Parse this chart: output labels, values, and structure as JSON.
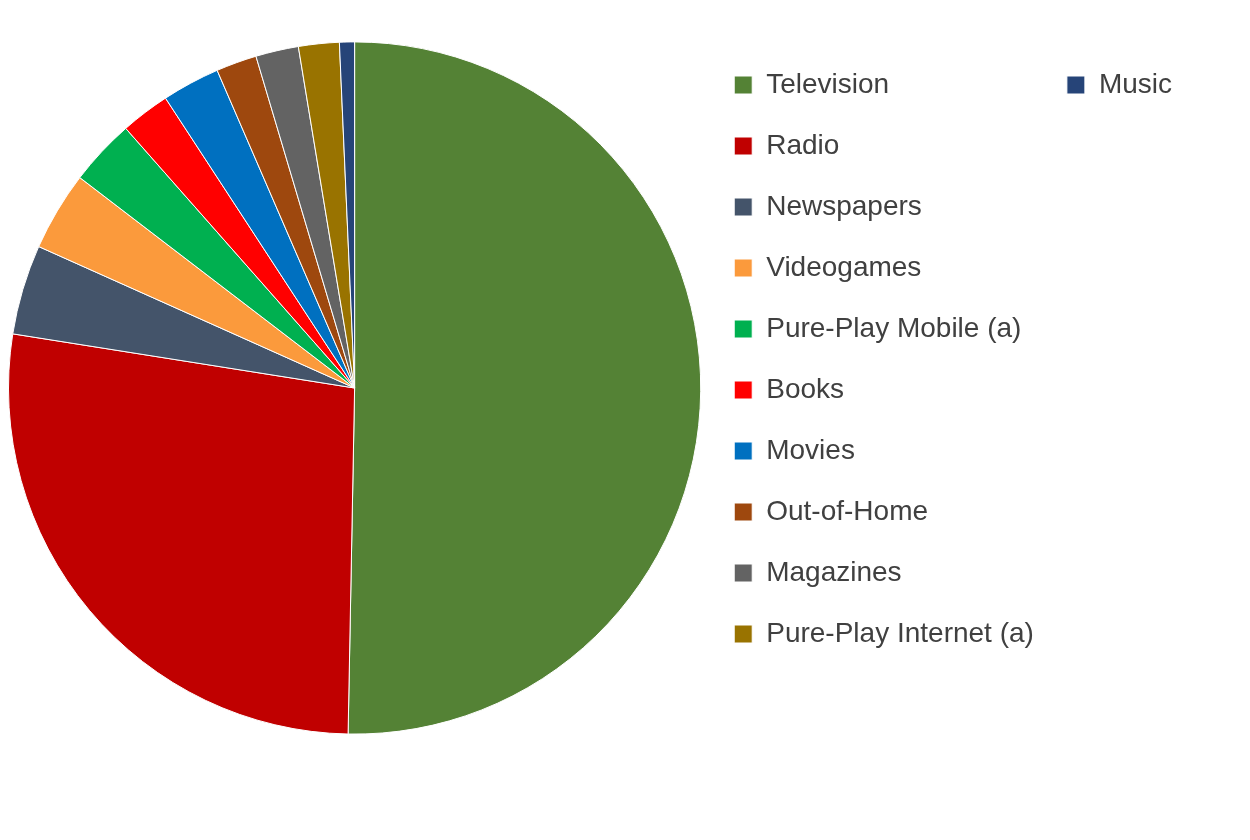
{
  "chart_data": {
    "type": "pie",
    "categories": [
      "Television",
      "Radio",
      "Newspapers",
      "Videogames",
      "Pure-Play Mobile (a)",
      "Books",
      "Movies",
      "Out-of-Home",
      "Magazines",
      "Pure-Play Internet (a)",
      "Music"
    ],
    "values": [
      50.3,
      27.2,
      4.2,
      3.7,
      3.1,
      2.3,
      2.7,
      1.9,
      2.0,
      1.9,
      0.7
    ],
    "colors": [
      "#548235",
      "#c00000",
      "#44546a",
      "#fb9a3c",
      "#00b050",
      "#ff0000",
      "#0070c0",
      "#9e480e",
      "#636363",
      "#997300",
      "#264478"
    ],
    "legend": "right"
  }
}
